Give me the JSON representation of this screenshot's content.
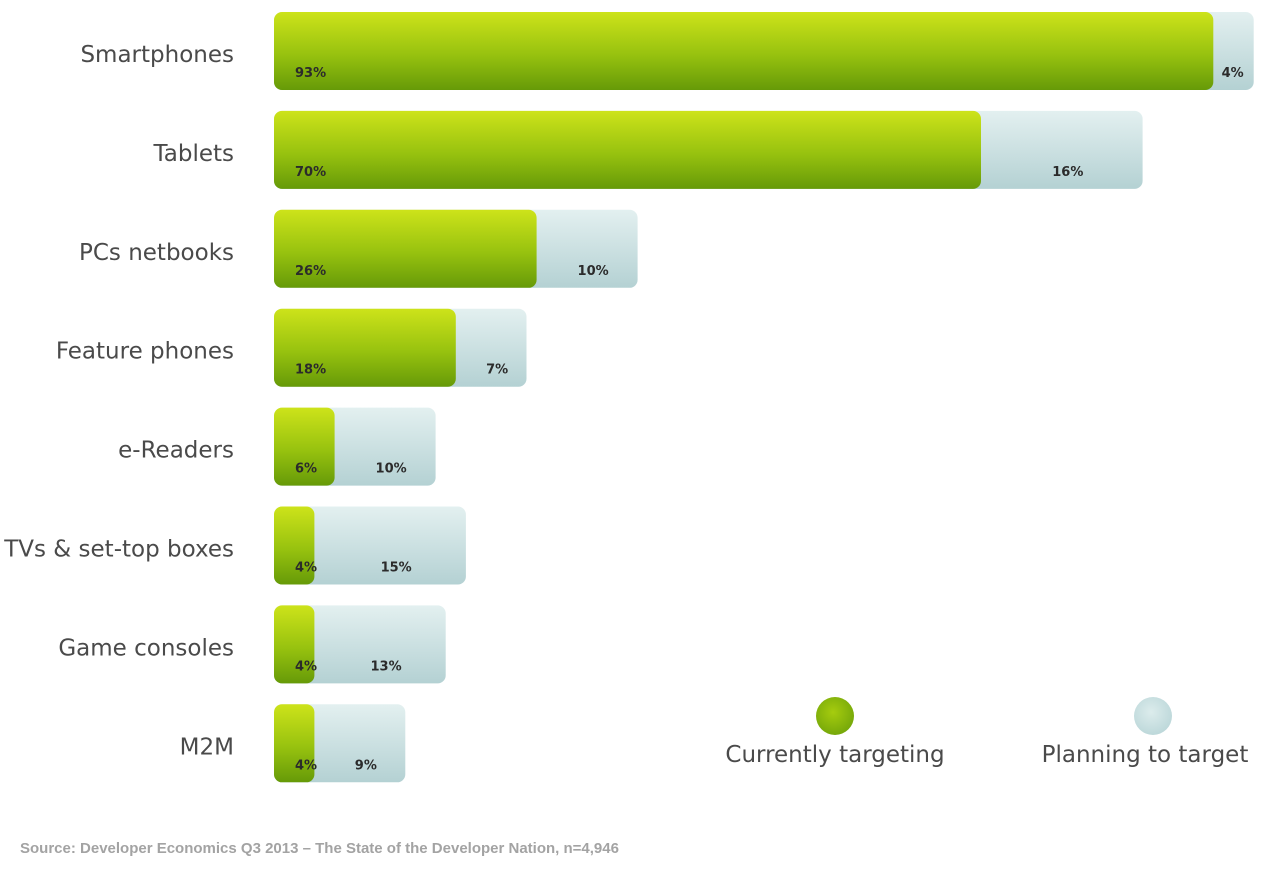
{
  "chart_data": {
    "type": "bar",
    "orientation": "horizontal",
    "stacked": true,
    "categories": [
      "Smartphones",
      "Tablets",
      "PCs netbooks",
      "Feature phones",
      "e-Readers",
      "TVs & set-top boxes",
      "Game consoles",
      "M2M"
    ],
    "series": [
      {
        "name": "Currently targeting",
        "values": [
          93,
          70,
          26,
          18,
          6,
          4,
          4,
          4
        ],
        "labels": [
          "93%",
          "70%",
          "26%",
          "18%",
          "6%",
          "4%",
          "4%",
          "4%"
        ],
        "color": "#7fb414"
      },
      {
        "name": "Planning to target",
        "values": [
          4,
          16,
          10,
          7,
          10,
          15,
          13,
          9
        ],
        "labels": [
          "4%",
          "16%",
          "10%",
          "7%",
          "10%",
          "15%",
          "13%",
          "9%"
        ],
        "color": "#c9e1e2"
      }
    ],
    "unit": "%",
    "xlim": [
      0,
      97
    ],
    "legend_position": "bottom-right",
    "grid": false
  },
  "source": "Source: Developer Economics Q3 2013 – The State of the Developer Nation, n=4,946",
  "colors": {
    "current_light": "#c6de14",
    "current_dark": "#6c9e0a",
    "planned_light": "#dcecec",
    "planned_dark": "#b6d2d4",
    "text": "#4a4a4a",
    "source_text": "#a3a3a3"
  }
}
